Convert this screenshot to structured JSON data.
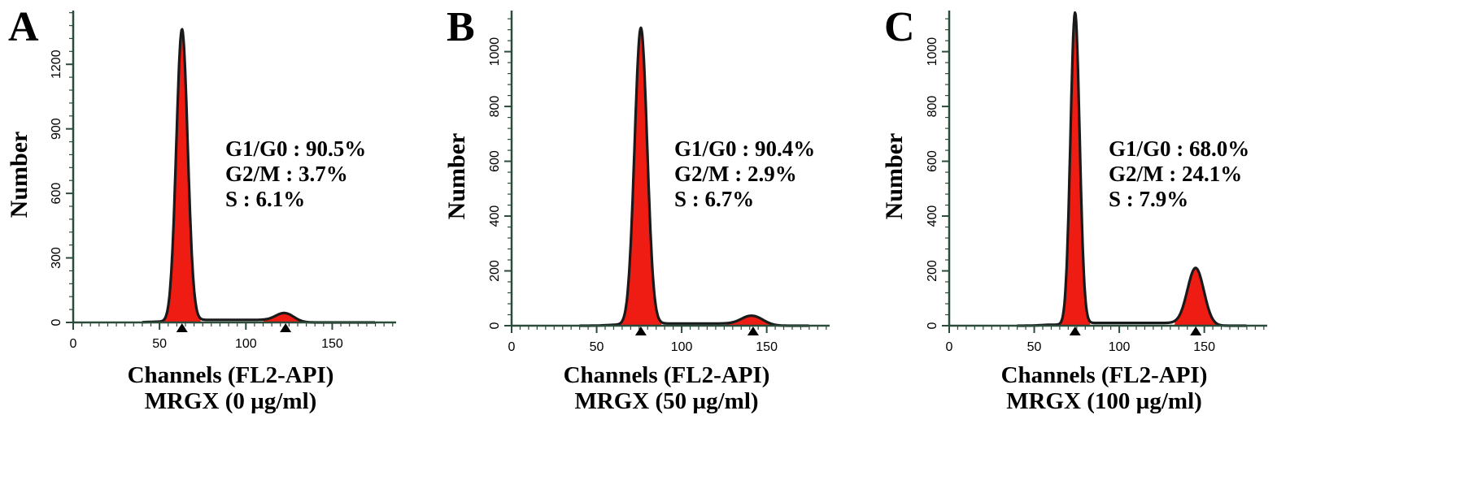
{
  "chart_data": [
    {
      "type": "area",
      "panel_label": "A",
      "xlabel": "Channels (FL2-API)",
      "condition": "MRGX (0 µg/ml)",
      "ylabel": "Number",
      "xlim": [
        0,
        187
      ],
      "ylim": [
        0,
        1450
      ],
      "x_ticks": [
        0,
        50,
        100,
        150
      ],
      "y_ticks": [
        0,
        300,
        600,
        900,
        1200
      ],
      "stats": [
        "G1/G0 : 90.5%",
        "G2/M : 3.7%",
        "S : 6.1%"
      ],
      "peaks": [
        {
          "name": "G1/G0",
          "center": 63,
          "height": 1360,
          "sigma": 3.3
        },
        {
          "name": "G2/M",
          "center": 123,
          "height": 40,
          "sigma": 5
        }
      ],
      "s_phase_level": 12,
      "peak_markers": [
        63,
        123
      ],
      "colors": {
        "fill": "#ee1c12",
        "outline": "#1a1a1a",
        "axis": "#2b4b3b"
      }
    },
    {
      "type": "area",
      "panel_label": "B",
      "xlabel": "Channels (FL2-API)",
      "condition": "MRGX (50 µg/ml)",
      "ylabel": "Number",
      "xlim": [
        0,
        187
      ],
      "ylim": [
        0,
        1150
      ],
      "x_ticks": [
        0,
        50,
        100,
        150
      ],
      "y_ticks": [
        0,
        200,
        400,
        600,
        800,
        1000
      ],
      "stats": [
        "G1/G0 : 90.4%",
        "G2/M : 2.9%",
        "S : 6.7%"
      ],
      "peaks": [
        {
          "name": "G1/G0",
          "center": 76,
          "height": 1085,
          "sigma": 3.7
        },
        {
          "name": "G2/M",
          "center": 142,
          "height": 34,
          "sigma": 6
        }
      ],
      "s_phase_level": 8,
      "peak_markers": [
        76,
        142
      ],
      "colors": {
        "fill": "#ee1c12",
        "outline": "#1a1a1a",
        "axis": "#2b4b3b"
      }
    },
    {
      "type": "area",
      "panel_label": "C",
      "xlabel": "Channels (FL2-API)",
      "condition": "MRGX (100 µg/ml)",
      "ylabel": "Number",
      "xlim": [
        0,
        187
      ],
      "ylim": [
        0,
        1150
      ],
      "x_ticks": [
        0,
        50,
        100,
        150
      ],
      "y_ticks": [
        0,
        200,
        400,
        600,
        800,
        1000
      ],
      "stats": [
        "G1/G0 : 68.0%",
        "G2/M : 24.1%",
        "S : 7.9%"
      ],
      "peaks": [
        {
          "name": "G1/G0",
          "center": 74,
          "height": 1140,
          "sigma": 2.7
        },
        {
          "name": "G2/M",
          "center": 145,
          "height": 208,
          "sigma": 4.8
        }
      ],
      "s_phase_level": 10,
      "peak_markers": [
        74,
        145
      ],
      "colors": {
        "fill": "#ee1c12",
        "outline": "#1a1a1a",
        "axis": "#2b4b3b"
      }
    }
  ]
}
